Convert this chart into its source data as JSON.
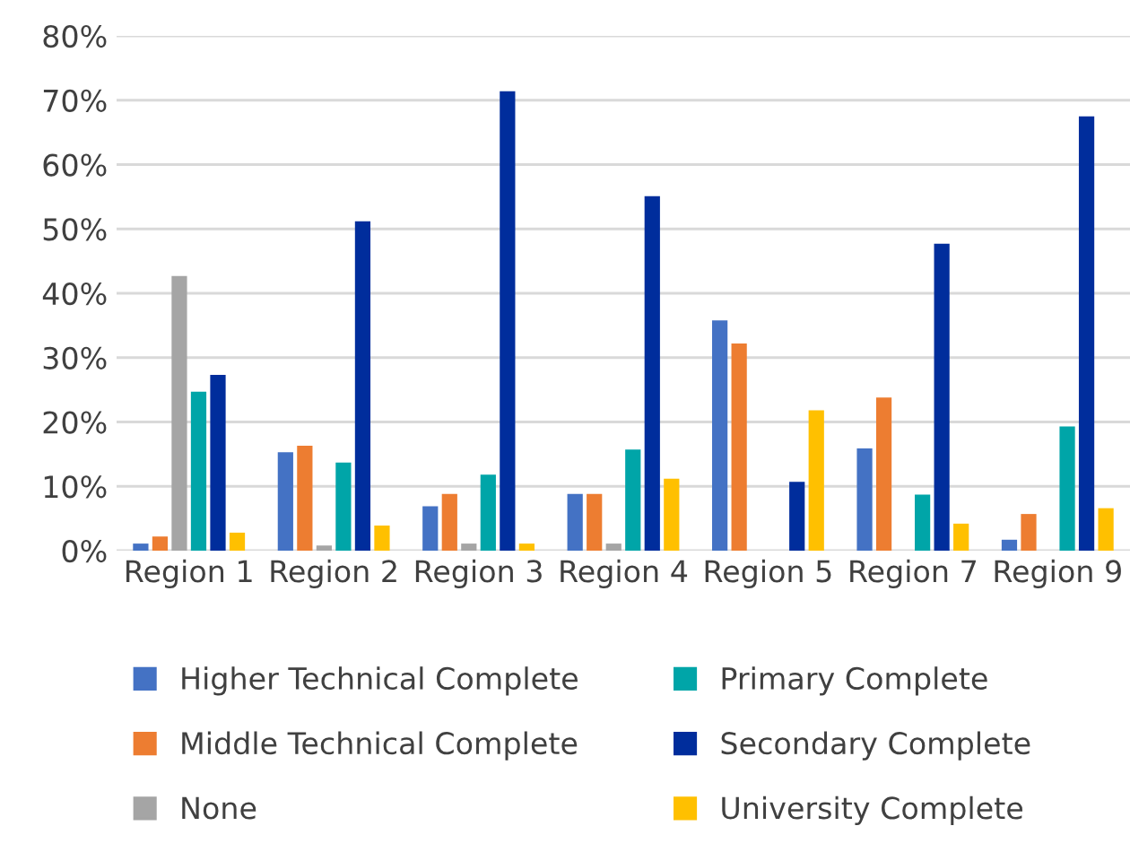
{
  "chart_data": {
    "type": "bar",
    "categories": [
      "Region 1",
      "Region 2",
      "Region 3",
      "Region 4",
      "Region 5",
      "Region 7",
      "Region 9"
    ],
    "series": [
      {
        "name": "Higher Technical Complete",
        "color": "#4472c4",
        "values": [
          1.1,
          15.3,
          6.9,
          8.8,
          35.8,
          15.9,
          1.7
        ]
      },
      {
        "name": "Middle Technical Complete",
        "color": "#ed7d31",
        "values": [
          2.2,
          16.3,
          8.8,
          8.8,
          32.2,
          23.8,
          5.7
        ]
      },
      {
        "name": "None",
        "color": "#a5a5a5",
        "values": [
          42.7,
          0.8,
          1.1,
          1.1,
          null,
          null,
          null
        ]
      },
      {
        "name": "Primary Complete",
        "color": "#00a5a8",
        "values": [
          24.7,
          13.7,
          11.8,
          15.7,
          null,
          8.7,
          19.3
        ]
      },
      {
        "name": "Secondary Complete",
        "color": "#002d9c",
        "values": [
          27.3,
          51.2,
          71.4,
          55.1,
          10.7,
          47.7,
          67.5
        ]
      },
      {
        "name": "University Complete",
        "color": "#ffc000",
        "values": [
          2.8,
          3.9,
          1.1,
          11.2,
          21.8,
          4.2,
          6.6
        ]
      }
    ],
    "ylim": [
      0,
      80
    ],
    "yticks": [
      {
        "value": 0,
        "label": "0%"
      },
      {
        "value": 10,
        "label": "10%"
      },
      {
        "value": 20,
        "label": "20%"
      },
      {
        "value": 30,
        "label": "30%"
      },
      {
        "value": 40,
        "label": "40%"
      },
      {
        "value": 50,
        "label": "50%"
      },
      {
        "value": 60,
        "label": "60%"
      },
      {
        "value": 70,
        "label": "70%"
      },
      {
        "value": 80,
        "label": "80%"
      }
    ],
    "grid": "y",
    "legend": "bottom"
  }
}
